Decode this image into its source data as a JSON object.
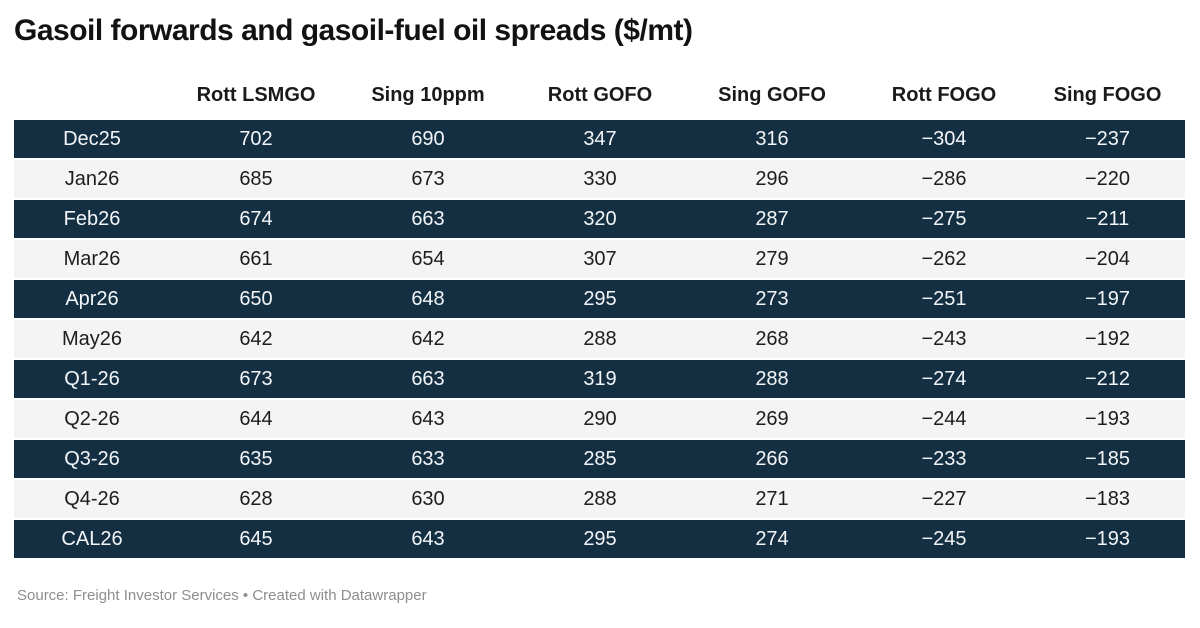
{
  "title": "Gasoil forwards and gasoil-fuel oil spreads ($/mt)",
  "source_note": "Source: Freight Investor Services • Created with Datawrapper",
  "colors": {
    "title_text": "#121212",
    "header_text": "#1a1a1a",
    "dark_row_bg": "#142e42",
    "dark_row_text": "#f2f6f8",
    "light_row_bg": "#f4f4f4",
    "light_row_text": "#1d1d1d",
    "source_text": "#8e8e8e",
    "row_divider": "#ffffff"
  },
  "chart_data": {
    "type": "table",
    "title": "Gasoil forwards and gasoil-fuel oil spreads ($/mt)",
    "unit": "$/mt",
    "columns": [
      "",
      "Rott LSMGO",
      "Sing 10ppm",
      "Rott GOFO",
      "Sing GOFO",
      "Rott FOGO",
      "Sing FOGO"
    ],
    "rows": [
      {
        "label": "Dec25",
        "values": [
          702,
          690,
          347,
          316,
          -304,
          -237
        ]
      },
      {
        "label": "Jan26",
        "values": [
          685,
          673,
          330,
          296,
          -286,
          -220
        ]
      },
      {
        "label": "Feb26",
        "values": [
          674,
          663,
          320,
          287,
          -275,
          -211
        ]
      },
      {
        "label": "Mar26",
        "values": [
          661,
          654,
          307,
          279,
          -262,
          -204
        ]
      },
      {
        "label": "Apr26",
        "values": [
          650,
          648,
          295,
          273,
          -251,
          -197
        ]
      },
      {
        "label": "May26",
        "values": [
          642,
          642,
          288,
          268,
          -243,
          -192
        ]
      },
      {
        "label": "Q1-26",
        "values": [
          673,
          663,
          319,
          288,
          -274,
          -212
        ]
      },
      {
        "label": "Q2-26",
        "values": [
          644,
          643,
          290,
          269,
          -244,
          -193
        ]
      },
      {
        "label": "Q3-26",
        "values": [
          635,
          633,
          285,
          266,
          -233,
          -185
        ]
      },
      {
        "label": "Q4-26",
        "values": [
          628,
          630,
          288,
          271,
          -227,
          -183
        ]
      },
      {
        "label": "CAL26",
        "values": [
          645,
          643,
          295,
          274,
          -245,
          -193
        ]
      }
    ],
    "layout_hints": {
      "row_striping": "alternating dark navy / light gray, starting dark",
      "value_alignment": "center",
      "negative_sign": "unicode minus"
    }
  }
}
